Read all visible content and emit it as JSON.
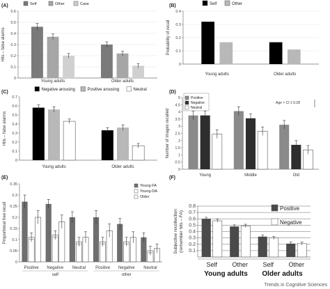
{
  "footer": {
    "journal": "Trends in Cognitive Sciences"
  },
  "chart_data": [
    {
      "panel": "(A)",
      "type": "bar",
      "ylabel": "Hits – false alarms",
      "ylim": [
        0,
        0.6
      ],
      "yticks": [
        "0",
        "0.1",
        "0.2",
        "0.3",
        "0.4",
        "0.5",
        "0.6"
      ],
      "categories": [
        "Young adults",
        "Older adults"
      ],
      "grid": true,
      "legend": "top",
      "series": [
        {
          "name": "Self",
          "color": "#7a7a7a",
          "values": [
            0.46,
            0.3
          ],
          "errors": [
            0.03,
            0.025
          ]
        },
        {
          "name": "Other",
          "color": "#a6a6a6",
          "values": [
            0.37,
            0.22
          ],
          "errors": [
            0.025,
            0.02
          ]
        },
        {
          "name": "Case",
          "color": "#d0d0d0",
          "values": [
            0.2,
            0.11
          ],
          "errors": [
            0.02,
            0.02
          ]
        }
      ]
    },
    {
      "panel": "(B)",
      "type": "bar",
      "ylabel": "Probability of recall",
      "ylim": [
        0,
        0.4
      ],
      "yticks": [
        "0",
        "0.1",
        "0.2",
        "0.3",
        "0.4"
      ],
      "categories": [
        "Young adults",
        "Older adults"
      ],
      "grid": true,
      "legend": "top",
      "series": [
        {
          "name": "Self",
          "color": "#000000",
          "values": [
            0.32,
            0.165
          ]
        },
        {
          "name": "Other",
          "color": "#b8b8b8",
          "values": [
            0.165,
            0.11
          ]
        }
      ]
    },
    {
      "panel": "(C)",
      "type": "bar",
      "ylabel": "Hits – false alarms",
      "ylim": [
        0,
        0.7
      ],
      "yticks": [
        "0",
        "0.1",
        "0.2",
        "0.3",
        "0.4",
        "0.5",
        "0.6",
        "0.7"
      ],
      "categories": [
        "Young adults",
        "Older adults"
      ],
      "grid": false,
      "legend": "top",
      "series": [
        {
          "name": "Negative arousing",
          "color": "#000000",
          "values": [
            0.58,
            0.33
          ],
          "errors": [
            0.03,
            0.03
          ]
        },
        {
          "name": "Positive arousing",
          "color": "#b8b8b8",
          "values": [
            0.56,
            0.36
          ],
          "errors": [
            0.03,
            0.03
          ]
        },
        {
          "name": "Neutral",
          "color": "#ffffff",
          "values": [
            0.43,
            0.16
          ],
          "errors": [
            0.025,
            0.025
          ]
        }
      ]
    },
    {
      "panel": "(D)",
      "type": "bar",
      "ylabel": "Number of images recalled",
      "ylim": [
        0,
        5
      ],
      "yticks": [
        "0",
        "0.5",
        "1",
        "1.5",
        "2",
        "2.5",
        "3",
        "3.5",
        "4",
        "4.5",
        "5"
      ],
      "categories": [
        "Young",
        "Middle",
        "Old"
      ],
      "grid": false,
      "legend": "top-left",
      "annotation": "Age × CI ± 0.28",
      "series": [
        {
          "name": "Positive",
          "color": "#8a8a8a",
          "values": [
            3.75,
            4.05,
            3.1
          ],
          "errors": [
            0.3,
            0.3,
            0.3
          ]
        },
        {
          "name": "Negative",
          "color": "#2e2e2e",
          "values": [
            3.75,
            3.55,
            1.7
          ],
          "errors": [
            0.3,
            0.3,
            0.3
          ]
        },
        {
          "name": "Neutral",
          "color": "#ffffff",
          "values": [
            2.45,
            2.65,
            1.35
          ],
          "errors": [
            0.3,
            0.3,
            0.3
          ]
        }
      ]
    },
    {
      "panel": "(E)",
      "type": "bar",
      "ylabel": "Proportional free recall",
      "ylim": [
        0,
        0.35
      ],
      "yticks": [
        "0",
        "0.05",
        "0.1",
        "0.15",
        "0.2",
        "0.25",
        "0.3",
        "0.35"
      ],
      "categories": [
        "Positive",
        "Negative",
        "Neutral",
        "Positive",
        "Negative",
        "Neutral"
      ],
      "groups": [
        "self",
        "other"
      ],
      "grid": false,
      "legend": "top-right",
      "series": [
        {
          "name": "Young-FA",
          "color": "#6e6e6e",
          "values": [
            0.27,
            0.26,
            0.2,
            0.2,
            0.17,
            0.11
          ],
          "errors": [
            0.03,
            0.02,
            0.025,
            0.03,
            0.025,
            0.02
          ]
        },
        {
          "name": "Young-DA",
          "color": "#ffffff",
          "values": [
            0.11,
            0.12,
            0.09,
            0.09,
            0.09,
            0.05
          ],
          "errors": [
            0.02,
            0.02,
            0.02,
            0.02,
            0.02,
            0.02
          ]
        },
        {
          "name": "Older",
          "color": "#ffffff",
          "values": [
            0.2,
            0.18,
            0.11,
            0.14,
            0.11,
            0.06
          ],
          "errors": [
            0.03,
            0.03,
            0.025,
            0.03,
            0.025,
            0.02
          ]
        }
      ]
    },
    {
      "panel": "(F)",
      "type": "bar",
      "ylabel": "Subjective recollection\n(remember hits – FA)",
      "ylim": [
        0,
        0.8
      ],
      "yticks": [
        "0.1",
        "0.2",
        "0.3",
        "0.4",
        "0.5",
        "0.6",
        "0.7",
        "0.8"
      ],
      "categories": [
        "Self",
        "Other",
        "Self",
        "Other"
      ],
      "groups": [
        "Young adults",
        "Older adults"
      ],
      "grid": true,
      "legend": "right",
      "series": [
        {
          "name": "Positive",
          "color": "#4a4a4a",
          "values": [
            0.6,
            0.48,
            0.32,
            0.21
          ],
          "errors": [
            0.025,
            0.025,
            0.025,
            0.025
          ]
        },
        {
          "name": "Negative",
          "color": "#ffffff",
          "values": [
            0.57,
            0.49,
            0.3,
            0.21
          ],
          "errors": [
            0.025,
            0.025,
            0.025,
            0.025
          ]
        }
      ]
    }
  ]
}
